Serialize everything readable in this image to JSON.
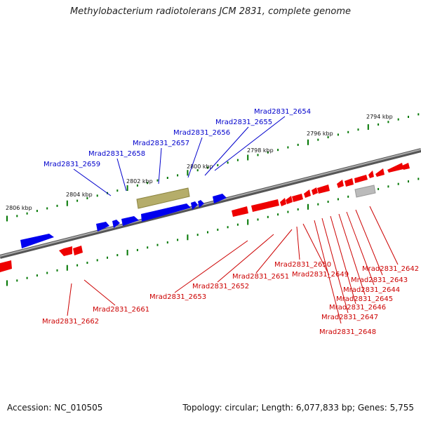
{
  "title": "Methylobacterium radiotolerans JCM 2831, complete genome",
  "footer": {
    "accession": "Accession: NC_010505",
    "summary": "Topology: circular; Length: 6,077,833 bp; Genes: 5,755"
  },
  "colors": {
    "forward_gene": "#0000ee",
    "reverse_gene": "#ee0000",
    "rna_feature": "#b5ad6a",
    "other_feature": "#bbbbbb",
    "backbone": "#777777",
    "tick": "#007700",
    "label_blue": "#0000cc",
    "label_red": "#cc0000"
  },
  "kbp_labels": [
    "2794 kbp",
    "2796 kbp",
    "2798 kbp",
    "2800 kbp",
    "2802 kbp",
    "2804 kbp",
    "2806 kbp"
  ],
  "blue_labels": [
    "Mrad2831_2654",
    "Mrad2831_2655",
    "Mrad2831_2656",
    "Mrad2831_2657",
    "Mrad2831_2658",
    "Mrad2831_2659"
  ],
  "red_labels": [
    "Mrad2831_2642",
    "Mrad2831_2643",
    "Mrad2831_2644",
    "Mrad2831_2645",
    "Mrad2831_2646",
    "Mrad2831_2647",
    "Mrad2831_2648",
    "Mrad2831_2649",
    "Mrad2831_2650",
    "Mrad2831_2651",
    "Mrad2831_2652",
    "Mrad2831_2653",
    "Mrad2831_2661",
    "Mrad2831_2662"
  ]
}
